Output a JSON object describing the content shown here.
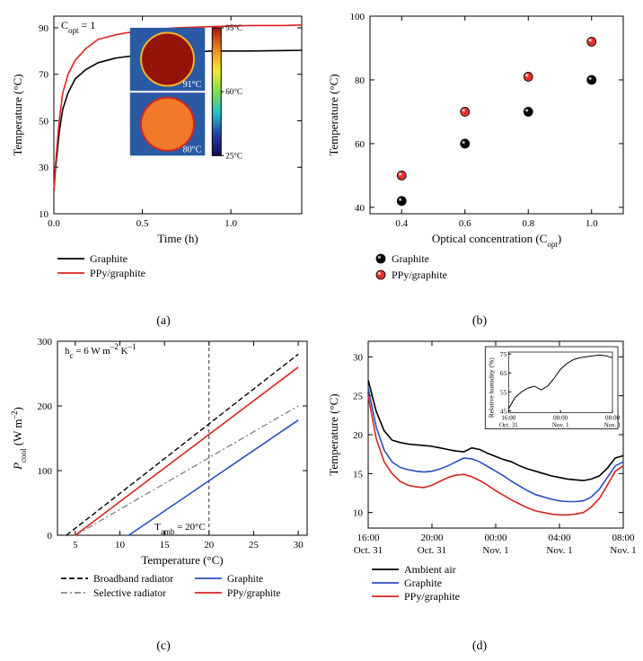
{
  "panel_a": {
    "type": "line",
    "annotation": "C_opt = 1",
    "xlabel": "Time (h)",
    "ylabel": "Temperature (°C)",
    "axis_color": "#000000",
    "background_color": "#ffffff",
    "label_fontsize": 13,
    "tick_fontsize": 11,
    "xlim": [
      0.0,
      1.4
    ],
    "ylim": [
      10,
      95
    ],
    "xticks": [
      0.0,
      0.5,
      1.0
    ],
    "yticks": [
      10,
      30,
      50,
      70,
      90
    ],
    "series": [
      {
        "label": "Graphite",
        "color": "#000000",
        "line_width": 1.6,
        "x": [
          0,
          0.01,
          0.03,
          0.05,
          0.08,
          0.12,
          0.18,
          0.25,
          0.35,
          0.5,
          0.7,
          0.9,
          1.1,
          1.3,
          1.4
        ],
        "y": [
          20,
          30,
          45,
          55,
          62,
          68,
          72,
          75,
          77,
          78.5,
          79.5,
          80,
          80,
          80.2,
          80.3
        ]
      },
      {
        "label": "PPy/graphite",
        "color": "#d8241f",
        "line_width": 1.6,
        "x": [
          0,
          0.01,
          0.03,
          0.05,
          0.08,
          0.12,
          0.18,
          0.25,
          0.35,
          0.5,
          0.7,
          0.9,
          1.1,
          1.3,
          1.4
        ],
        "y": [
          20,
          32,
          50,
          62,
          70,
          76,
          81,
          85,
          87,
          89,
          90,
          90.5,
          91,
          91,
          91.2
        ]
      }
    ],
    "inset_thermal": {
      "x": 0.43,
      "y_top": 36,
      "w": 0.55,
      "h_total": 55,
      "top_temp_label": "91°C",
      "bottom_temp_label": "80°C",
      "top_circle_color": "#941308",
      "bottom_circle_color": "#f07a2a",
      "bg_color": "#2a5aa3"
    },
    "colorbar": {
      "ticks": [
        "25°C",
        "60°C",
        "95°C"
      ],
      "stops": [
        "#140a5a",
        "#223dad",
        "#27c2c7",
        "#7de24a",
        "#f6e834",
        "#f08522",
        "#a3130c"
      ]
    },
    "sub": "(a)"
  },
  "panel_b": {
    "type": "scatter",
    "xlabel": "Optical concentration (C_opt)",
    "ylabel": "Temperature (°C)",
    "axis_color": "#000000",
    "background_color": "#ffffff",
    "label_fontsize": 13,
    "tick_fontsize": 11,
    "xlim": [
      0.3,
      1.1
    ],
    "ylim": [
      38,
      100
    ],
    "xticks": [
      0.4,
      0.6,
      0.8,
      1.0
    ],
    "yticks": [
      40,
      60,
      80,
      100
    ],
    "marker_radius": 5,
    "series": [
      {
        "label": "Graphite",
        "fill": "#000000",
        "stroke": "#000000",
        "x": [
          0.4,
          0.6,
          0.8,
          1.0
        ],
        "y": [
          42,
          60,
          70,
          80
        ]
      },
      {
        "label": "PPy/graphite",
        "fill": "#e0332c",
        "stroke": "#000000",
        "x": [
          0.4,
          0.6,
          0.8,
          1.0
        ],
        "y": [
          50,
          70,
          81,
          92
        ]
      }
    ],
    "sub": "(b)"
  },
  "panel_c": {
    "type": "line",
    "annotation_top": "h_c = 6 W m⁻² K⁻¹",
    "annotation_tamb": "T_amb = 20°C",
    "xlabel": "Temperature (°C)",
    "ylabel": "P_cool (W m⁻²)",
    "axis_color": "#000000",
    "background_color": "#ffffff",
    "label_fontsize": 13,
    "tick_fontsize": 11,
    "xlim": [
      3,
      31
    ],
    "ylim": [
      0,
      300
    ],
    "xticks": [
      5,
      10,
      15,
      20,
      25,
      30
    ],
    "yticks": [
      0,
      100,
      200,
      300
    ],
    "ref_line_x": 20,
    "series": [
      {
        "label": "Broadband radiator",
        "color": "#000000",
        "dash": "6,3",
        "line_width": 1.4,
        "x": [
          4,
          30
        ],
        "y": [
          0,
          280
        ]
      },
      {
        "label": "Selective radiator",
        "color": "#888888",
        "dash": "7,3,2,3",
        "line_width": 1.4,
        "x": [
          5,
          30
        ],
        "y": [
          0,
          200
        ]
      },
      {
        "label": "Graphite",
        "color": "#2a4dc2",
        "dash": "",
        "line_width": 1.6,
        "x": [
          11,
          30
        ],
        "y": [
          0,
          178
        ]
      },
      {
        "label": "PPy/graphite",
        "color": "#d8241f",
        "dash": "",
        "line_width": 1.6,
        "x": [
          5,
          30
        ],
        "y": [
          0,
          260
        ]
      }
    ],
    "sub": "(c)"
  },
  "panel_d": {
    "type": "line",
    "xlabel_ticks_top": [
      "16:00",
      "20:00",
      "00:00",
      "04:00",
      "08:00"
    ],
    "xlabel_ticks_bottom": [
      "Oct. 31",
      "Oct. 31",
      "Nov. 1",
      "Nov. 1",
      "Nov. 1"
    ],
    "ylabel": "Temperature (°C)",
    "axis_color": "#000000",
    "background_color": "#ffffff",
    "label_fontsize": 13,
    "tick_fontsize": 11,
    "xlim": [
      0,
      16
    ],
    "ylim": [
      8,
      32
    ],
    "xticks": [
      0,
      4,
      8,
      12,
      16
    ],
    "yticks": [
      10,
      15,
      20,
      25,
      30
    ],
    "series": [
      {
        "label": "Ambient air",
        "color": "#000000",
        "line_width": 1.6,
        "x": [
          0,
          0.5,
          1,
          1.5,
          2,
          2.5,
          3,
          3.5,
          4,
          4.5,
          5,
          5.5,
          6,
          6.5,
          7,
          7.5,
          8,
          8.5,
          9,
          9.5,
          10,
          10.5,
          11,
          11.5,
          12,
          12.5,
          13,
          13.5,
          14,
          14.5,
          15,
          15.5,
          16
        ],
        "y": [
          27,
          23,
          20.5,
          19.3,
          19,
          18.8,
          18.7,
          18.6,
          18.5,
          18.3,
          18.1,
          17.9,
          17.8,
          18.3,
          18.1,
          17.6,
          17.2,
          16.8,
          16.5,
          16,
          15.6,
          15.3,
          15,
          14.7,
          14.5,
          14.3,
          14.2,
          14.1,
          14.3,
          14.7,
          15.7,
          17,
          17.3
        ]
      },
      {
        "label": "Graphite",
        "color": "#2a4dc2",
        "line_width": 1.6,
        "x": [
          0,
          0.5,
          1,
          1.5,
          2,
          2.5,
          3,
          3.5,
          4,
          4.5,
          5,
          5.5,
          6,
          6.5,
          7,
          7.5,
          8,
          8.5,
          9,
          9.5,
          10,
          10.5,
          11,
          11.5,
          12,
          12.5,
          13,
          13.5,
          14,
          14.5,
          15,
          15.5,
          16
        ],
        "y": [
          26,
          21,
          18,
          16.5,
          15.8,
          15.5,
          15.3,
          15.2,
          15.3,
          15.6,
          16,
          16.5,
          17,
          16.9,
          16.5,
          15.9,
          15.3,
          14.7,
          14,
          13.4,
          12.8,
          12.3,
          12,
          11.7,
          11.5,
          11.4,
          11.4,
          11.5,
          12,
          13,
          14.5,
          16,
          16.5
        ]
      },
      {
        "label": "PPy/graphite",
        "color": "#d8241f",
        "line_width": 1.6,
        "x": [
          0,
          0.5,
          1,
          1.5,
          2,
          2.5,
          3,
          3.5,
          4,
          4.5,
          5,
          5.5,
          6,
          6.5,
          7,
          7.5,
          8,
          8.5,
          9,
          9.5,
          10,
          10.5,
          11,
          11.5,
          12,
          12.5,
          13,
          13.5,
          14,
          14.5,
          15,
          15.5,
          16
        ],
        "y": [
          25,
          19.5,
          16.5,
          15,
          14,
          13.5,
          13.3,
          13.2,
          13.5,
          14,
          14.5,
          14.8,
          14.9,
          14.6,
          14.1,
          13.5,
          12.8,
          12.2,
          11.6,
          11.1,
          10.6,
          10.2,
          10,
          9.8,
          9.7,
          9.7,
          9.8,
          10,
          10.7,
          11.8,
          13.5,
          15.3,
          16
        ]
      }
    ],
    "inset": {
      "xlabel_ticks_top": [
        "16:00",
        "00:00",
        "08:00"
      ],
      "xlabel_ticks_bottom": [
        "Oct. 31",
        "Nov. 1",
        "Nov. 1"
      ],
      "ylabel": "Relative humidity (%)",
      "xlim": [
        0,
        16
      ],
      "ylim": [
        44,
        76
      ],
      "yticks": [
        45,
        55,
        65,
        75
      ],
      "color": "#000000",
      "x": [
        0,
        1,
        2,
        3,
        4,
        5,
        6,
        7,
        8,
        9,
        10,
        11,
        12,
        13,
        14,
        15,
        16
      ],
      "y": [
        46,
        52,
        55,
        57,
        58,
        56,
        58,
        62,
        67,
        70,
        72,
        73,
        73.5,
        74,
        74.5,
        74,
        73
      ]
    },
    "sub": "(d)"
  }
}
